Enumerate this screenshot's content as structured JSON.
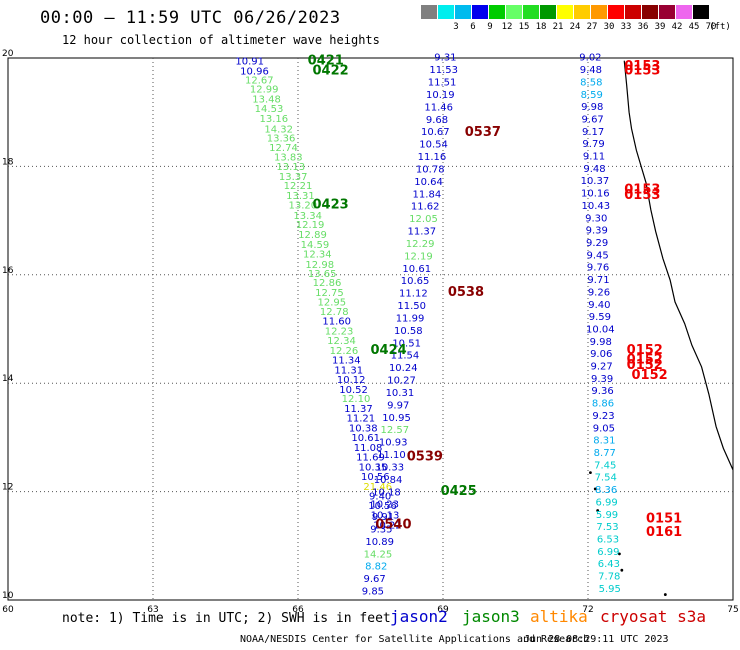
{
  "header": {
    "title": "00:00 – 11:59 UTC 06/26/2023",
    "subtitle": "12 hour collection of altimeter wave heights"
  },
  "legend": {
    "unit": "(ft)",
    "swatches": [
      {
        "label": "",
        "color": "#808080"
      },
      {
        "label": "3",
        "color": "#00eeee"
      },
      {
        "label": "6",
        "color": "#00bbee"
      },
      {
        "label": "9",
        "color": "#0000ee"
      },
      {
        "label": "12",
        "color": "#00cc00"
      },
      {
        "label": "15",
        "color": "#66ff66"
      },
      {
        "label": "18",
        "color": "#22dd22"
      },
      {
        "label": "21",
        "color": "#009900"
      },
      {
        "label": "24",
        "color": "#ffff00"
      },
      {
        "label": "27",
        "color": "#ffcc00"
      },
      {
        "label": "30",
        "color": "#ff9900"
      },
      {
        "label": "33",
        "color": "#ff0000"
      },
      {
        "label": "36",
        "color": "#cc0000"
      },
      {
        "label": "39",
        "color": "#880000"
      },
      {
        "label": "42",
        "color": "#990033"
      },
      {
        "label": "45",
        "color": "#ee66ee"
      },
      {
        "label": "70",
        "color": "#000000"
      }
    ]
  },
  "map": {
    "lon_range": [
      60,
      75
    ],
    "lat_range": [
      10,
      20
    ],
    "x_ticks": [
      "60",
      "63",
      "66",
      "69",
      "72",
      "75"
    ],
    "y_ticks": [
      "20",
      "18",
      "16",
      "14",
      "12",
      "10"
    ],
    "gridlines": "dotted",
    "tracks": [
      {
        "satellite": "jason3",
        "points": [
          {
            "lon": 65.0,
            "lat": 19.88,
            "v": "10.91",
            "c": "#0000cc"
          },
          {
            "lon": 65.1,
            "lat": 19.7,
            "v": "10.96",
            "c": "#0000cc"
          },
          {
            "lon": 65.2,
            "lat": 19.53,
            "v": "12.67",
            "c": "#66dd66"
          },
          {
            "lon": 65.3,
            "lat": 19.36,
            "v": "12.99",
            "c": "#66dd66"
          },
          {
            "lon": 65.35,
            "lat": 19.18,
            "v": "13.48",
            "c": "#66dd66"
          },
          {
            "lon": 65.4,
            "lat": 19.0,
            "v": "14.53",
            "c": "#66dd66"
          },
          {
            "lon": 65.5,
            "lat": 18.82,
            "v": "13.16",
            "c": "#66dd66"
          },
          {
            "lon": 65.6,
            "lat": 18.63,
            "v": "14.32",
            "c": "#66dd66"
          },
          {
            "lon": 65.65,
            "lat": 18.46,
            "v": "13.36",
            "c": "#66dd66"
          },
          {
            "lon": 65.7,
            "lat": 18.28,
            "v": "12.74",
            "c": "#66dd66"
          },
          {
            "lon": 65.8,
            "lat": 18.11,
            "v": "13.83",
            "c": "#66dd66"
          },
          {
            "lon": 65.85,
            "lat": 17.93,
            "v": "13.13",
            "c": "#66dd66"
          },
          {
            "lon": 65.9,
            "lat": 17.75,
            "v": "13.37",
            "c": "#66dd66"
          },
          {
            "lon": 66.0,
            "lat": 17.58,
            "v": "12.21",
            "c": "#66dd66"
          },
          {
            "lon": 66.05,
            "lat": 17.4,
            "v": "13.31",
            "c": "#66dd66"
          },
          {
            "lon": 66.1,
            "lat": 17.22,
            "v": "13.20",
            "c": "#66dd66"
          },
          {
            "lon": 66.2,
            "lat": 17.03,
            "v": "13.34",
            "c": "#66dd66"
          },
          {
            "lon": 66.25,
            "lat": 16.86,
            "v": "12.19",
            "c": "#66dd66"
          },
          {
            "lon": 66.3,
            "lat": 16.68,
            "v": "12.89",
            "c": "#66dd66"
          },
          {
            "lon": 66.35,
            "lat": 16.49,
            "v": "14.59",
            "c": "#66dd66"
          },
          {
            "lon": 66.4,
            "lat": 16.32,
            "v": "12.34",
            "c": "#66dd66"
          },
          {
            "lon": 66.45,
            "lat": 16.13,
            "v": "12.98",
            "c": "#66dd66"
          },
          {
            "lon": 66.5,
            "lat": 15.96,
            "v": "13.65",
            "c": "#66dd66"
          },
          {
            "lon": 66.6,
            "lat": 15.79,
            "v": "12.86",
            "c": "#66dd66"
          },
          {
            "lon": 66.65,
            "lat": 15.61,
            "v": "12.75",
            "c": "#66dd66"
          },
          {
            "lon": 66.7,
            "lat": 15.43,
            "v": "12.95",
            "c": "#66dd66"
          },
          {
            "lon": 66.75,
            "lat": 15.26,
            "v": "12.78",
            "c": "#66dd66"
          },
          {
            "lon": 66.8,
            "lat": 15.08,
            "v": "11.60",
            "c": "#0000cc"
          },
          {
            "lon": 66.85,
            "lat": 14.9,
            "v": "12.23",
            "c": "#66dd66"
          },
          {
            "lon": 66.9,
            "lat": 14.72,
            "v": "12.34",
            "c": "#66dd66"
          },
          {
            "lon": 66.95,
            "lat": 14.54,
            "v": "12.26",
            "c": "#66dd66"
          },
          {
            "lon": 67.0,
            "lat": 14.36,
            "v": "11.34",
            "c": "#0000cc"
          },
          {
            "lon": 67.05,
            "lat": 14.18,
            "v": "11.31",
            "c": "#0000cc"
          },
          {
            "lon": 67.1,
            "lat": 14.0,
            "v": "10.12",
            "c": "#0000cc"
          },
          {
            "lon": 67.15,
            "lat": 13.82,
            "v": "10.52",
            "c": "#0000cc"
          },
          {
            "lon": 67.2,
            "lat": 13.65,
            "v": "12.10",
            "c": "#66dd66"
          },
          {
            "lon": 67.25,
            "lat": 13.47,
            "v": "11.37",
            "c": "#0000cc"
          },
          {
            "lon": 67.3,
            "lat": 13.29,
            "v": "11.21",
            "c": "#0000cc"
          },
          {
            "lon": 67.35,
            "lat": 13.11,
            "v": "10.38",
            "c": "#0000cc"
          },
          {
            "lon": 67.4,
            "lat": 12.93,
            "v": "10.61",
            "c": "#0000cc"
          },
          {
            "lon": 67.45,
            "lat": 12.75,
            "v": "11.08",
            "c": "#0000cc"
          },
          {
            "lon": 67.5,
            "lat": 12.57,
            "v": "11.69",
            "c": "#0000cc"
          },
          {
            "lon": 67.55,
            "lat": 12.39,
            "v": "10.35",
            "c": "#0000cc"
          },
          {
            "lon": 67.6,
            "lat": 12.21,
            "v": "10.56",
            "c": "#0000cc"
          },
          {
            "lon": 67.65,
            "lat": 12.03,
            "v": "21.46",
            "c": "#dddd00"
          },
          {
            "lon": 67.7,
            "lat": 11.85,
            "v": "9.40",
            "c": "#0000cc"
          },
          {
            "lon": 67.75,
            "lat": 11.68,
            "v": "10.56",
            "c": "#0000cc"
          },
          {
            "lon": 67.8,
            "lat": 11.5,
            "v": "10.13",
            "c": "#0000cc"
          },
          {
            "lon": 67.85,
            "lat": 11.32,
            "v": "10.22",
            "c": "#0000cc"
          }
        ]
      }
    ],
    "pass_labels": [
      {
        "text": "0421",
        "lon": 66.2,
        "lat": 19.88,
        "c": "#007700"
      },
      {
        "text": "0422",
        "lon": 66.3,
        "lat": 19.7,
        "c": "#007700"
      },
      {
        "text": "0423",
        "lon": 66.3,
        "lat": 17.22,
        "c": "#007700"
      },
      {
        "text": "0424",
        "lon": 67.5,
        "lat": 14.54,
        "c": "#007700"
      },
      {
        "text": "0425",
        "lon": 68.95,
        "lat": 11.94,
        "c": "#007700"
      },
      {
        "text": "0537",
        "lon": 69.45,
        "lat": 18.56,
        "c": "#880000"
      },
      {
        "text": "0538",
        "lon": 69.1,
        "lat": 15.61,
        "c": "#880000"
      },
      {
        "text": "0539",
        "lon": 68.25,
        "lat": 12.57,
        "c": "#880000"
      },
      {
        "text": "0540",
        "lon": 67.6,
        "lat": 11.32,
        "c": "#880000"
      },
      {
        "text": "0153",
        "lon": 72.75,
        "lat": 19.78,
        "c": "#ee0000"
      },
      {
        "text": "0153",
        "lon": 72.75,
        "lat": 19.7,
        "c": "#ee0000"
      },
      {
        "text": "0153",
        "lon": 72.75,
        "lat": 17.5,
        "c": "#ee0000"
      },
      {
        "text": "0153",
        "lon": 72.75,
        "lat": 17.4,
        "c": "#ee0000"
      },
      {
        "text": "0152",
        "lon": 72.8,
        "lat": 14.54,
        "c": "#ee0000"
      },
      {
        "text": "0152",
        "lon": 72.8,
        "lat": 14.36,
        "c": "#ee0000"
      },
      {
        "text": "0152",
        "lon": 72.8,
        "lat": 14.26,
        "c": "#ee0000"
      },
      {
        "text": "0152",
        "lon": 72.9,
        "lat": 14.08,
        "c": "#ee0000"
      },
      {
        "text": "0151",
        "lon": 73.2,
        "lat": 11.43,
        "c": "#ee0000"
      },
      {
        "text": "0161",
        "lon": 73.2,
        "lat": 11.18,
        "c": "#ee0000"
      }
    ],
    "jason2_track": [
      {
        "v": "9.31",
        "c": "#0000cc"
      },
      {
        "v": "11.53",
        "c": "#0000cc"
      },
      {
        "v": "11.51",
        "c": "#0000cc"
      },
      {
        "v": "10.19",
        "c": "#0000cc"
      },
      {
        "v": "11.46",
        "c": "#0000cc"
      },
      {
        "v": "9.68",
        "c": "#0000cc"
      },
      {
        "v": "10.67",
        "c": "#0000cc"
      },
      {
        "v": "10.54",
        "c": "#0000cc"
      },
      {
        "v": "11.16",
        "c": "#0000cc"
      },
      {
        "v": "10.78",
        "c": "#0000cc"
      },
      {
        "v": "10.64",
        "c": "#0000cc"
      },
      {
        "v": "11.84",
        "c": "#0000cc"
      },
      {
        "v": "11.62",
        "c": "#0000cc"
      },
      {
        "v": "12.05",
        "c": "#66dd66"
      },
      {
        "v": "11.37",
        "c": "#0000cc"
      },
      {
        "v": "12.29",
        "c": "#66dd66"
      },
      {
        "v": "12.19",
        "c": "#66dd66"
      },
      {
        "v": "10.61",
        "c": "#0000cc"
      },
      {
        "v": "10.65",
        "c": "#0000cc"
      },
      {
        "v": "11.12",
        "c": "#0000cc"
      },
      {
        "v": "11.50",
        "c": "#0000cc"
      },
      {
        "v": "11.99",
        "c": "#0000cc"
      },
      {
        "v": "10.58",
        "c": "#0000cc"
      },
      {
        "v": "10.51",
        "c": "#0000cc"
      },
      {
        "v": "11.54",
        "c": "#0000cc"
      },
      {
        "v": "10.24",
        "c": "#0000cc"
      },
      {
        "v": "10.27",
        "c": "#0000cc"
      },
      {
        "v": "10.31",
        "c": "#0000cc"
      },
      {
        "v": "9.97",
        "c": "#0000cc"
      },
      {
        "v": "10.95",
        "c": "#0000cc"
      },
      {
        "v": "12.57",
        "c": "#66dd66"
      },
      {
        "v": "10.93",
        "c": "#0000cc"
      },
      {
        "v": "11.10",
        "c": "#0000cc"
      },
      {
        "v": "10.33",
        "c": "#0000cc"
      },
      {
        "v": "10.84",
        "c": "#0000cc"
      },
      {
        "v": "10.18",
        "c": "#0000cc"
      },
      {
        "v": "10.23",
        "c": "#0000cc"
      },
      {
        "v": "9.91",
        "c": "#0000cc"
      },
      {
        "v": "9.35",
        "c": "#0000cc"
      },
      {
        "v": "10.89",
        "c": "#0000cc"
      },
      {
        "v": "14.25",
        "c": "#66dd66"
      },
      {
        "v": "8.82",
        "c": "#00aaee"
      },
      {
        "v": "9.67",
        "c": "#0000cc"
      },
      {
        "v": "9.85",
        "c": "#0000cc"
      }
    ],
    "east_track": [
      {
        "v": "9.02",
        "c": "#0000cc"
      },
      {
        "v": "9.48",
        "c": "#0000cc"
      },
      {
        "v": "8.58",
        "c": "#00aaee"
      },
      {
        "v": "8.59",
        "c": "#00aaee"
      },
      {
        "v": "9.98",
        "c": "#0000cc"
      },
      {
        "v": "9.67",
        "c": "#0000cc"
      },
      {
        "v": "9.17",
        "c": "#0000cc"
      },
      {
        "v": "9.79",
        "c": "#0000cc"
      },
      {
        "v": "9.11",
        "c": "#0000cc"
      },
      {
        "v": "9.48",
        "c": "#0000cc"
      },
      {
        "v": "10.37",
        "c": "#0000cc"
      },
      {
        "v": "10.16",
        "c": "#0000cc"
      },
      {
        "v": "10.43",
        "c": "#0000cc"
      },
      {
        "v": "9.30",
        "c": "#0000cc"
      },
      {
        "v": "9.39",
        "c": "#0000cc"
      },
      {
        "v": "9.29",
        "c": "#0000cc"
      },
      {
        "v": "9.45",
        "c": "#0000cc"
      },
      {
        "v": "9.76",
        "c": "#0000cc"
      },
      {
        "v": "9.71",
        "c": "#0000cc"
      },
      {
        "v": "9.26",
        "c": "#0000cc"
      },
      {
        "v": "9.40",
        "c": "#0000cc"
      },
      {
        "v": "9.59",
        "c": "#0000cc"
      },
      {
        "v": "10.04",
        "c": "#0000cc"
      },
      {
        "v": "9.98",
        "c": "#0000cc"
      },
      {
        "v": "9.06",
        "c": "#0000cc"
      },
      {
        "v": "9.27",
        "c": "#0000cc"
      },
      {
        "v": "9.39",
        "c": "#0000cc"
      },
      {
        "v": "9.36",
        "c": "#0000cc"
      },
      {
        "v": "8.86",
        "c": "#00aaee"
      },
      {
        "v": "9.23",
        "c": "#0000cc"
      },
      {
        "v": "9.05",
        "c": "#0000cc"
      },
      {
        "v": "8.31",
        "c": "#00aaee"
      },
      {
        "v": "8.77",
        "c": "#00aaee"
      },
      {
        "v": "7.45",
        "c": "#00cccc"
      },
      {
        "v": "7.54",
        "c": "#00cccc"
      },
      {
        "v": "8.36",
        "c": "#00aaee"
      },
      {
        "v": "6.99",
        "c": "#00cccc"
      },
      {
        "v": "5.99",
        "c": "#00cccc"
      },
      {
        "v": "7.53",
        "c": "#00cccc"
      },
      {
        "v": "6.53",
        "c": "#00cccc"
      },
      {
        "v": "6.99",
        "c": "#00cccc"
      },
      {
        "v": "6.43",
        "c": "#00cccc"
      },
      {
        "v": "7.78",
        "c": "#00cccc"
      },
      {
        "v": "5.95",
        "c": "#00cccc"
      }
    ]
  },
  "footer": {
    "note": "note: 1) Time is in UTC; 2) SWH is in feet",
    "satellites": [
      {
        "name": "jason2",
        "color": "#0000cc"
      },
      {
        "name": "jason3",
        "color": "#008800"
      },
      {
        "name": "altika",
        "color": "#ff8800"
      },
      {
        "name": "cryosat s3a",
        "color": "#cc0000"
      }
    ],
    "credit": "NOAA/NESDIS Center for Satellite Applications and Research",
    "timestamp": "Jun 28 08:29:11 UTC 2023"
  }
}
